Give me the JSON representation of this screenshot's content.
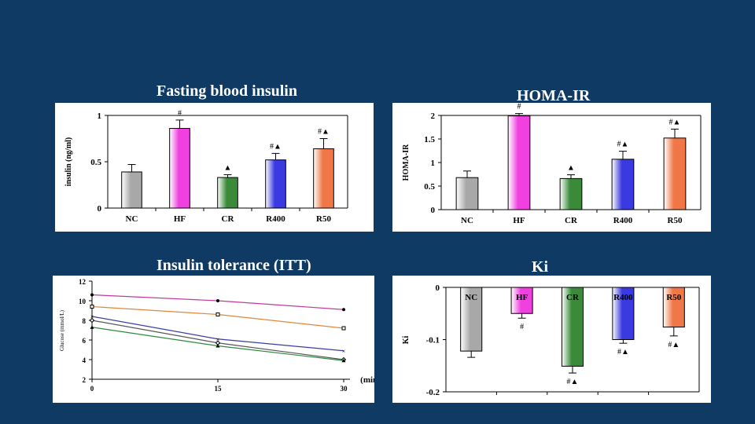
{
  "titles": {
    "insulin": "Fasting blood insulin",
    "homa": "HOMA-IR",
    "itt": "Insulin tolerance (ITT)",
    "ki": "Ki"
  },
  "chart_data": [
    {
      "type": "bar",
      "title": "Fasting blood insulin",
      "ylabel": "insulin (ng/ml)",
      "categories": [
        "NC",
        "HF",
        "CR",
        "R400",
        "R50"
      ],
      "values": [
        0.39,
        0.86,
        0.33,
        0.52,
        0.64
      ],
      "errors": [
        0.08,
        0.09,
        0.03,
        0.07,
        0.11
      ],
      "annotations": [
        "",
        "#",
        "▲",
        "#▲",
        "#▲"
      ],
      "yticks": [
        "0",
        "0.5",
        "1"
      ],
      "ylim": [
        0,
        1
      ]
    },
    {
      "type": "bar",
      "title": "HOMA-IR",
      "ylabel": "HOMA-IR",
      "categories": [
        "NC",
        "HF",
        "CR",
        "R400",
        "R50"
      ],
      "values": [
        0.68,
        1.99,
        0.66,
        1.07,
        1.52
      ],
      "errors": [
        0.14,
        0.05,
        0.08,
        0.17,
        0.19
      ],
      "annotations": [
        "",
        "#",
        "▲",
        "#▲",
        "#▲"
      ],
      "yticks": [
        "0",
        "0.5",
        "1",
        "1.5",
        "2"
      ],
      "ylim": [
        0,
        2
      ]
    },
    {
      "type": "line",
      "title": "Insulin tolerance (ITT)",
      "ylabel": "Glucose (mmol/L)",
      "xlabel": "(min)",
      "xticks": [
        "0",
        "15",
        "30"
      ],
      "yticks": [
        "2",
        "4",
        "6",
        "8",
        "10",
        "12"
      ],
      "xlim": [
        0,
        30
      ],
      "ylim": [
        2,
        12
      ],
      "series": [
        {
          "color": "#c0389b",
          "x": [
            0,
            15,
            30
          ],
          "y": [
            10.6,
            10.0,
            9.1
          ]
        },
        {
          "color": "#e0873a",
          "x": [
            0,
            15,
            30
          ],
          "y": [
            9.4,
            8.6,
            7.2
          ]
        },
        {
          "color": "#3a3aa8",
          "x": [
            0,
            15,
            30
          ],
          "y": [
            8.4,
            6.1,
            4.9
          ]
        },
        {
          "color": "#555555",
          "x": [
            0,
            15,
            30
          ],
          "y": [
            8.0,
            5.7,
            4.0
          ]
        },
        {
          "color": "#2a8a3a",
          "x": [
            0,
            15,
            30
          ],
          "y": [
            7.3,
            5.4,
            3.9
          ]
        }
      ]
    },
    {
      "type": "bar",
      "title": "Ki",
      "ylabel": "Ki",
      "categories": [
        "NC",
        "HF",
        "CR",
        "R400",
        "R50"
      ],
      "values": [
        -0.122,
        -0.05,
        -0.151,
        -0.1,
        -0.076
      ],
      "errors": [
        0.012,
        0.009,
        0.013,
        0.007,
        0.017
      ],
      "annotations": [
        "",
        "#",
        "#▲",
        "#▲",
        "#▲"
      ],
      "yticks": [
        "0",
        "-0.1",
        "-0.2"
      ],
      "ylim": [
        -0.2,
        0
      ]
    }
  ],
  "colors": {
    "background": "#0f3a64",
    "bars": [
      "#a8a8a8",
      "#f040e0",
      "#3a8a3a",
      "#3a3ae0",
      "#f07848"
    ]
  }
}
